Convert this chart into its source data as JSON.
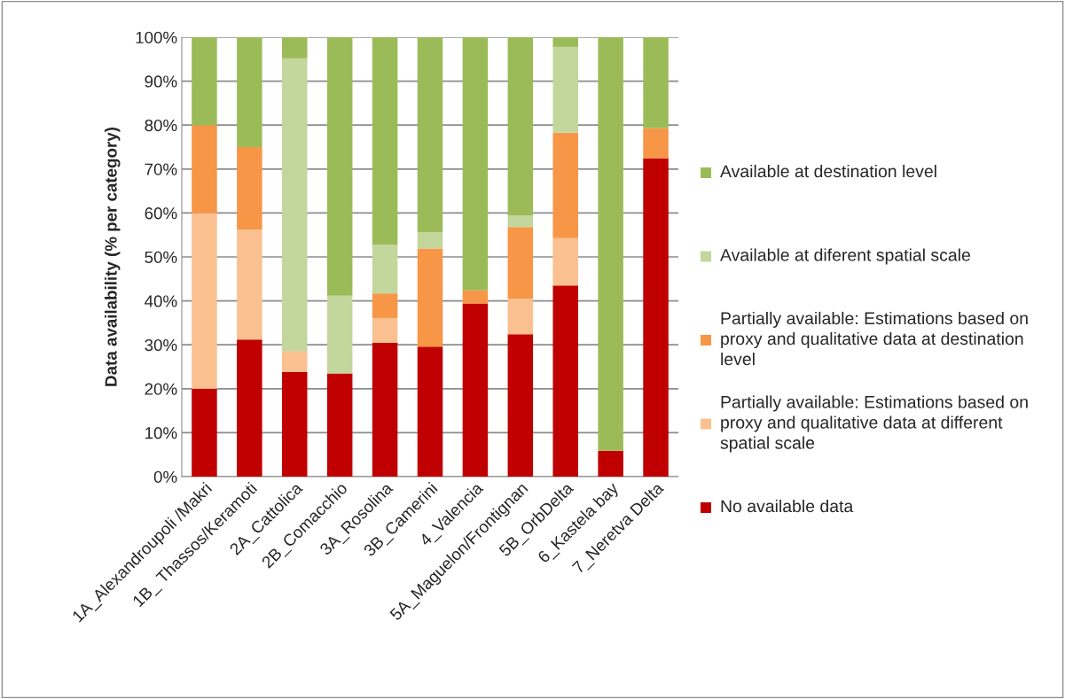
{
  "chart_data": {
    "type": "bar",
    "stacked": true,
    "ylabel": "Data availability (% per category)",
    "categories": [
      "1A_Alexandroupoli /Makri",
      "1B_ Thassos/Keramoti",
      "2A_Cattolica",
      "2B_Comacchio",
      "3A_Rosolina",
      "3B_Camerini",
      "4_Valencia",
      "5A_Maguelon/Frontignan",
      "5B_OrbDelta",
      "6_Kastela bay",
      "7_Neretva Delta"
    ],
    "series": [
      {
        "name": "No available data",
        "color": "#c00000",
        "values": [
          20,
          31.2,
          23.8,
          23.5,
          30.5,
          29.6,
          39.4,
          32.4,
          43.5,
          5.9,
          72.4
        ]
      },
      {
        "name": "Partially available: Estimations based on proxy and qualitative data at different spatial scale",
        "color": "#fac090",
        "values": [
          40,
          25,
          4.8,
          0,
          5.6,
          0,
          0,
          8.1,
          10.8,
          0,
          0
        ]
      },
      {
        "name": "Partially available: Estimations based on proxy and qualitative data at destination level",
        "color": "#f79646",
        "values": [
          20,
          18.8,
          0,
          0,
          5.6,
          22.3,
          3,
          16.3,
          24,
          0,
          6.9
        ]
      },
      {
        "name": "Available at diferent spatial scale",
        "color": "#c3d69b",
        "values": [
          0,
          0,
          66.6,
          17.7,
          11.1,
          3.7,
          0,
          2.7,
          19.5,
          0,
          0
        ]
      },
      {
        "name": "Available at destination level",
        "color": "#9bbb59",
        "values": [
          20,
          25,
          4.8,
          58.8,
          47.2,
          44.4,
          57.6,
          40.5,
          2.2,
          94.1,
          20.7
        ]
      }
    ],
    "ylim": [
      0,
      100
    ],
    "yticks": [
      {
        "value": 0,
        "label": "0%"
      },
      {
        "value": 10,
        "label": "10%"
      },
      {
        "value": 20,
        "label": "20%"
      },
      {
        "value": 30,
        "label": "30%"
      },
      {
        "value": 40,
        "label": "40%"
      },
      {
        "value": 50,
        "label": "50%"
      },
      {
        "value": 60,
        "label": "60%"
      },
      {
        "value": 70,
        "label": "70%"
      },
      {
        "value": 80,
        "label": "80%"
      },
      {
        "value": 90,
        "label": "90%"
      },
      {
        "value": 100,
        "label": "100%"
      }
    ],
    "grid": "y",
    "legend": "right"
  }
}
